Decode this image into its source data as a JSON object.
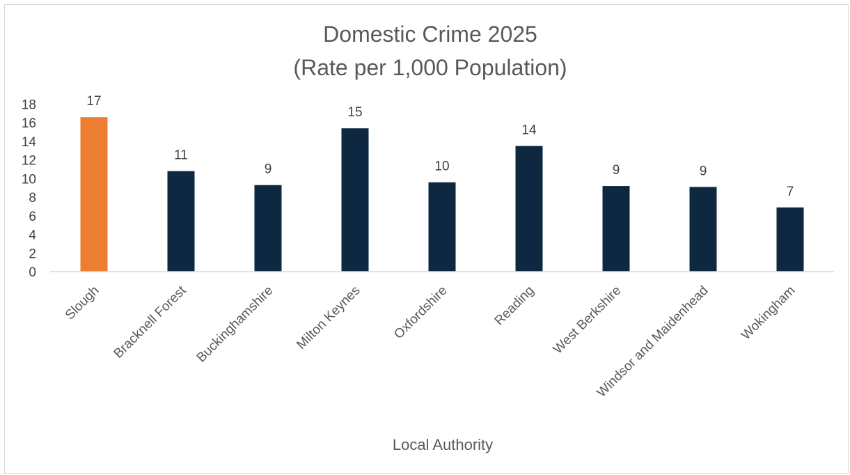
{
  "chart_data": {
    "type": "bar",
    "title_line1": "Domestic Crime 2025",
    "title_line2": "(Rate per 1,000 Population)",
    "xlabel": "Local Authority",
    "ylabel": "",
    "ylim": [
      0,
      18
    ],
    "yticks": [
      "0",
      "2",
      "4",
      "6",
      "8",
      "10",
      "12",
      "14",
      "16",
      "18"
    ],
    "categories": [
      "Slough",
      "Bracknell Forest",
      "Buckinghamshire",
      "Milton Keynes",
      "Oxfordshire",
      "Reading",
      "West Berkshire",
      "Windsor and Maidenhead",
      "Wokingham"
    ],
    "values": [
      16.6,
      10.8,
      9.3,
      15.4,
      9.6,
      13.5,
      9.2,
      9.1,
      6.9
    ],
    "data_labels": [
      "17",
      "11",
      "9",
      "15",
      "10",
      "14",
      "9",
      "9",
      "7"
    ],
    "highlight_index": 0,
    "highlight_color": "#ED7D31",
    "bar_color": "#0E2841",
    "grid": false,
    "legend": "none"
  }
}
